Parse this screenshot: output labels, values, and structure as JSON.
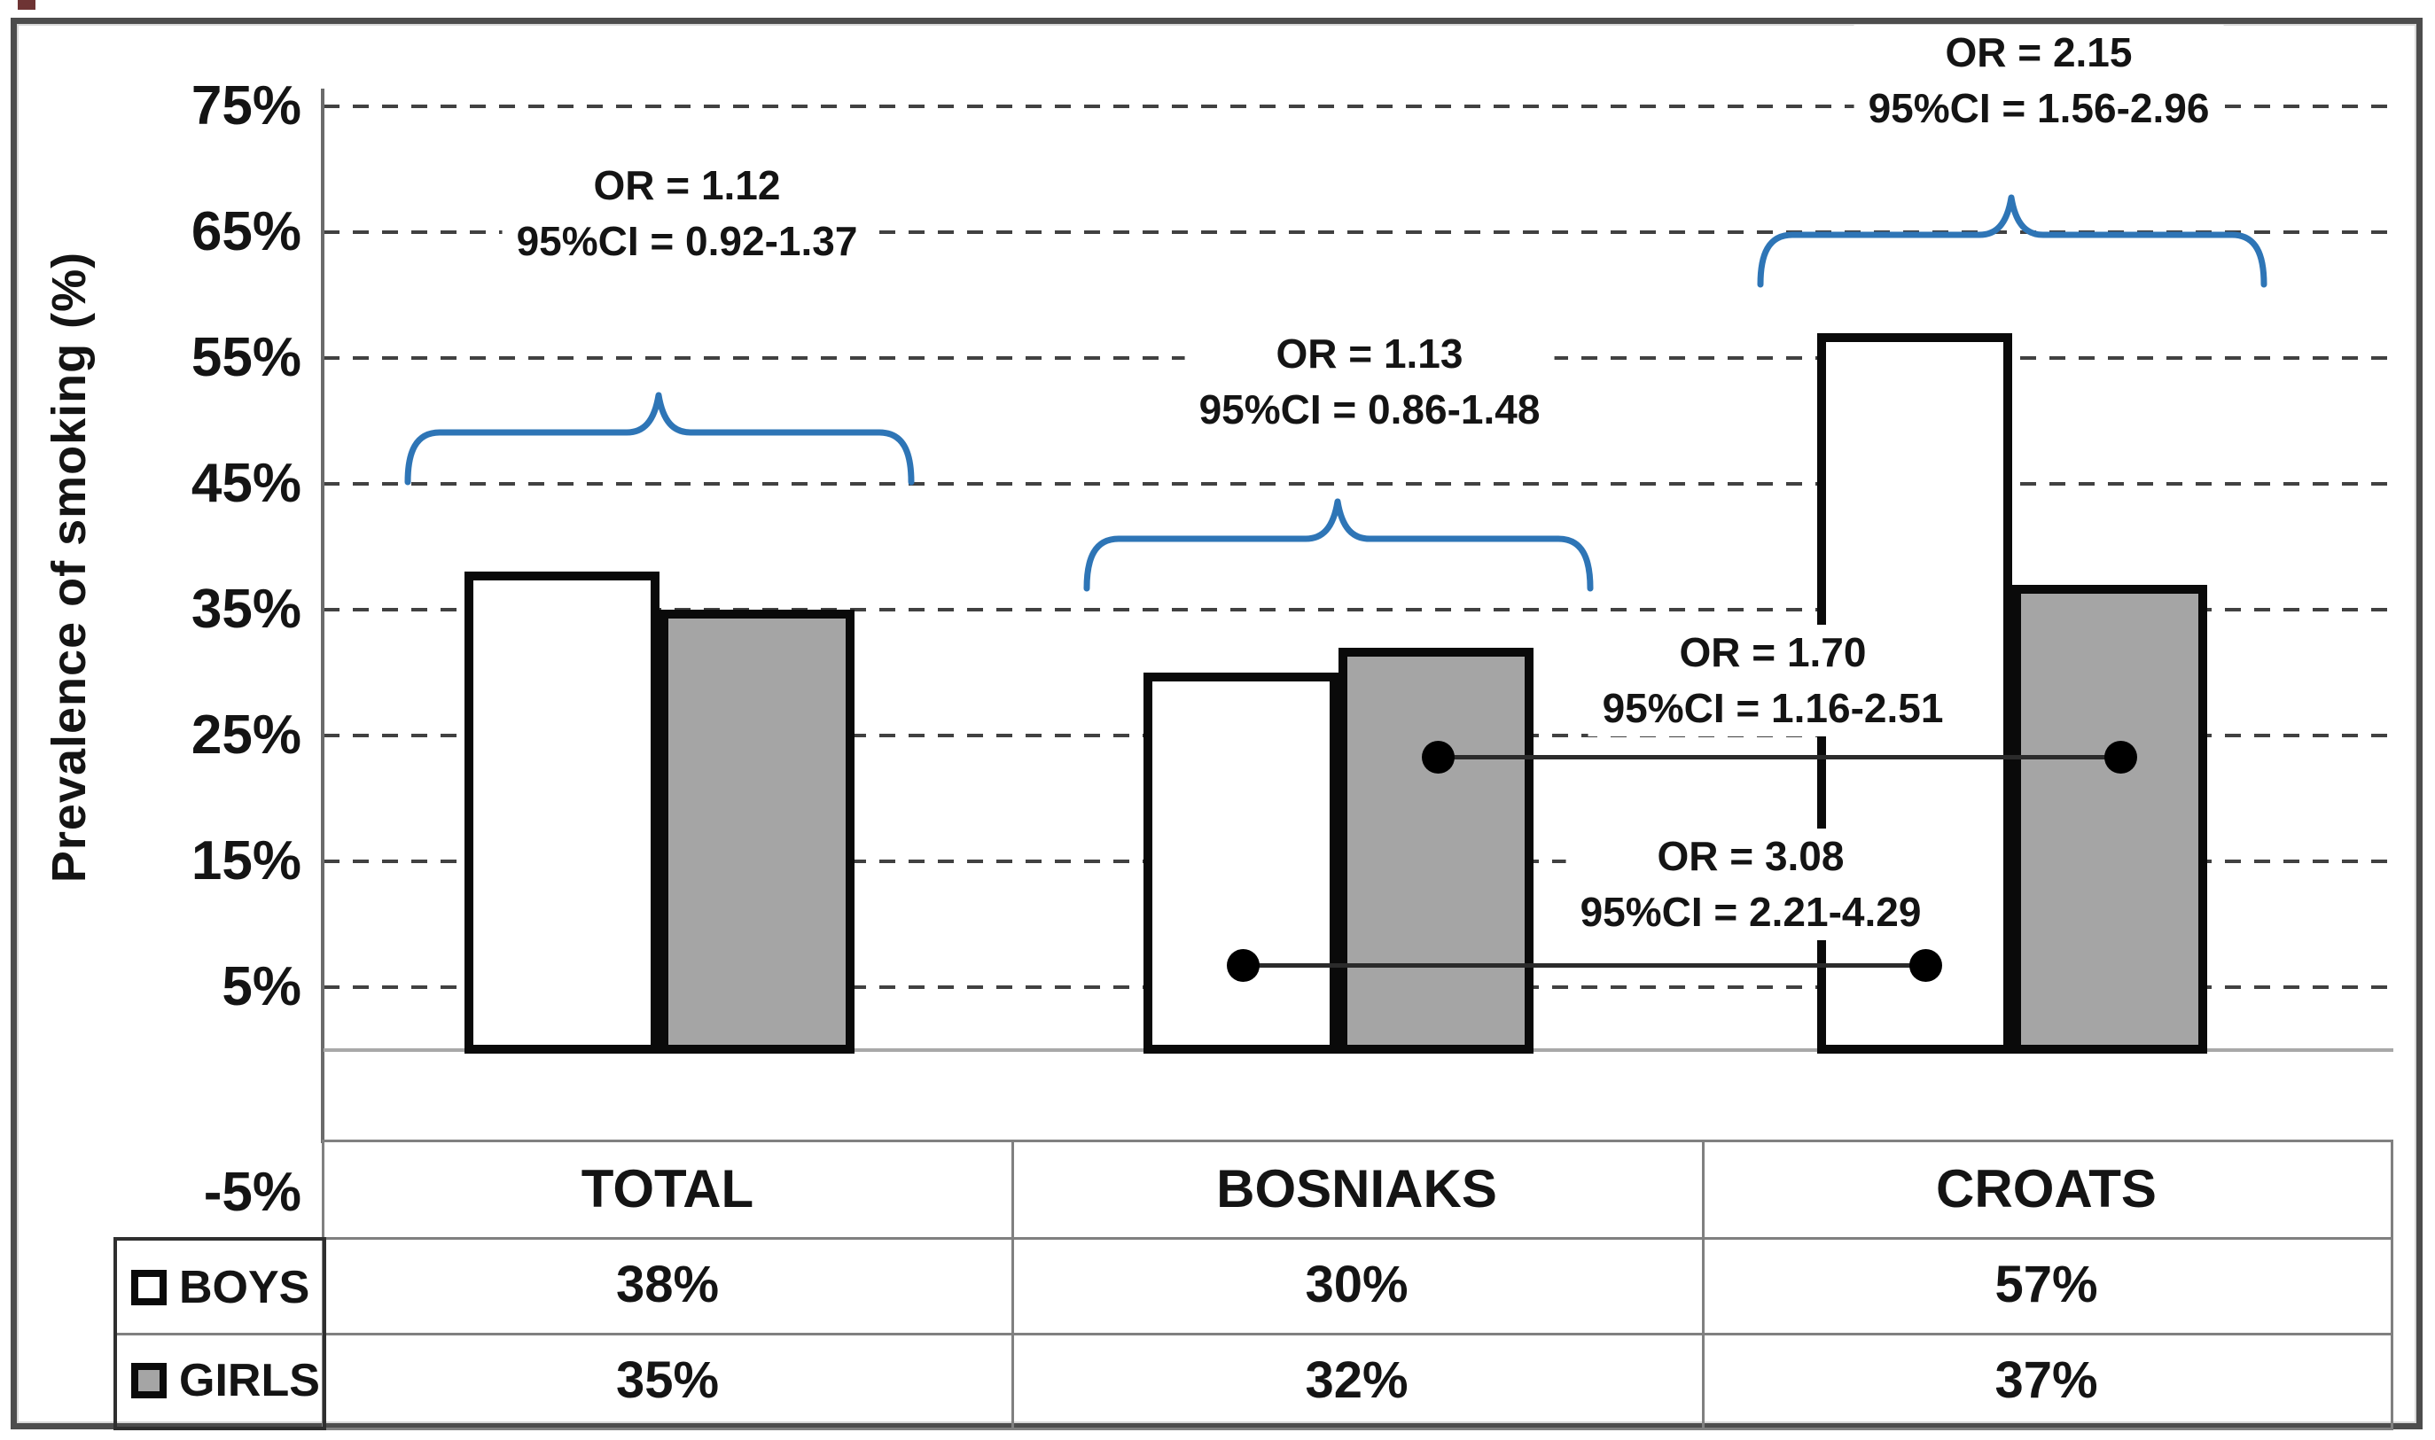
{
  "axis": {
    "title": "Prevalence of smoking (%)",
    "ticks": [
      {
        "label": "75%",
        "value": 75
      },
      {
        "label": "65%",
        "value": 65
      },
      {
        "label": "55%",
        "value": 55
      },
      {
        "label": "45%",
        "value": 45
      },
      {
        "label": "35%",
        "value": 35
      },
      {
        "label": "25%",
        "value": 25
      },
      {
        "label": "15%",
        "value": 15
      },
      {
        "label": "5%",
        "value": 5
      }
    ],
    "negative_tick": "-5%"
  },
  "chart_data": {
    "type": "bar",
    "title": "",
    "xlabel": "",
    "ylabel": "Prevalence of smoking (%)",
    "categories": [
      "TOTAL",
      "BOSNIAKS",
      "CROATS"
    ],
    "series": [
      {
        "name": "BOYS",
        "values": [
          38,
          30,
          57
        ]
      },
      {
        "name": "GIRLS",
        "values": [
          35,
          32,
          37
        ]
      }
    ],
    "value_unit": "percent",
    "ylim": [
      -5,
      75
    ],
    "y_tick_step": 10,
    "grid": "dashed-horizontal",
    "legend_position": "bottom-left-table",
    "annotations": [
      {
        "target": "TOTAL boys vs girls",
        "style": "brace",
        "or": "OR = 1.12",
        "ci": "95%CI = 0.92-1.37"
      },
      {
        "target": "BOSNIAKS boys vs girls",
        "style": "brace",
        "or": "OR = 1.13",
        "ci": "95%CI = 0.86-1.48"
      },
      {
        "target": "CROATS boys vs girls",
        "style": "brace",
        "or": "OR = 2.15",
        "ci": "95%CI = 1.56-2.96"
      },
      {
        "target": "GIRLS Croats vs Bosniaks",
        "style": "dot-line",
        "or": "OR = 1.70",
        "ci": "95%CI = 1.16-2.51",
        "level_pct": 23
      },
      {
        "target": "BOYS Croats vs Bosniaks",
        "style": "dot-line",
        "or": "OR = 3.08",
        "ci": "95%CI = 2.21-4.29",
        "level_pct": 7
      }
    ]
  },
  "table": {
    "header": [
      "TOTAL",
      "BOSNIAKS",
      "CROATS"
    ],
    "rows": [
      {
        "label": "BOYS",
        "values": [
          "38%",
          "30%",
          "57%"
        ]
      },
      {
        "label": "GIRLS",
        "values": [
          "35%",
          "32%",
          "37%"
        ]
      }
    ]
  },
  "colors": {
    "boys_fill": "#ffffff",
    "girls_fill": "#a5a5a5",
    "bar_border": "#0a0a0a",
    "brace_blue": "#2e75b6",
    "grid_line": "#414141",
    "axis_line": "#6b6b6b",
    "baseline": "#a8a8a8",
    "table_line": "#808080",
    "text": "#141414"
  }
}
